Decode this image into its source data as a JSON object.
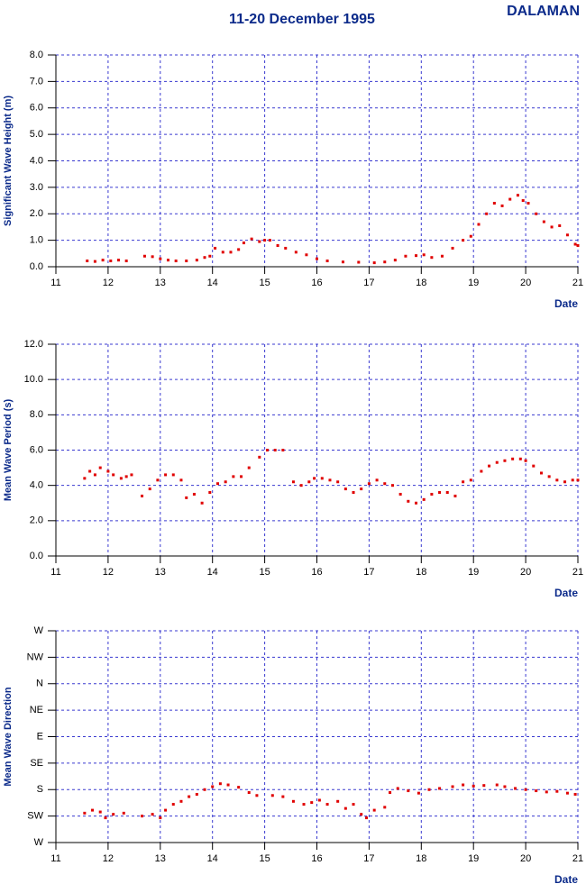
{
  "title": "11-20 December 1995",
  "station": "DALAMAN",
  "chart_data": [
    {
      "type": "scatter",
      "y_label": "Significant Wave Height (m)",
      "x_label": "Date",
      "color": "#e00000",
      "grid": true,
      "xlim": [
        11,
        21
      ],
      "xticks": [
        11,
        12,
        13,
        14,
        15,
        16,
        17,
        18,
        19,
        20,
        21
      ],
      "ylim": [
        0,
        8
      ],
      "yticks": [
        {
          "value": 0,
          "label": "0.0"
        },
        {
          "value": 1,
          "label": "1.0"
        },
        {
          "value": 2,
          "label": "2.0"
        },
        {
          "value": 3,
          "label": "3.0"
        },
        {
          "value": 4,
          "label": "4.0"
        },
        {
          "value": 5,
          "label": "5.0"
        },
        {
          "value": 6,
          "label": "6.0"
        },
        {
          "value": 7,
          "label": "7.0"
        },
        {
          "value": 8,
          "label": "8.0"
        }
      ],
      "x": [
        11.6,
        11.75,
        11.9,
        12.05,
        12.2,
        12.35,
        12.7,
        12.85,
        13.0,
        13.15,
        13.3,
        13.5,
        13.7,
        13.85,
        13.95,
        14.05,
        14.2,
        14.35,
        14.5,
        14.6,
        14.75,
        14.9,
        15.0,
        15.1,
        15.25,
        15.4,
        15.6,
        15.8,
        16.0,
        16.2,
        16.5,
        16.8,
        17.1,
        17.3,
        17.5,
        17.7,
        17.9,
        18.05,
        18.2,
        18.4,
        18.6,
        18.8,
        18.95,
        19.1,
        19.25,
        19.4,
        19.55,
        19.7,
        19.85,
        19.95,
        20.05,
        20.2,
        20.35,
        20.5,
        20.65,
        20.8,
        20.95,
        21.0
      ],
      "y": [
        0.22,
        0.2,
        0.25,
        0.22,
        0.25,
        0.22,
        0.4,
        0.38,
        0.3,
        0.25,
        0.22,
        0.22,
        0.25,
        0.35,
        0.4,
        0.7,
        0.55,
        0.55,
        0.65,
        0.9,
        1.05,
        0.95,
        1.0,
        1.0,
        0.8,
        0.7,
        0.55,
        0.45,
        0.3,
        0.22,
        0.18,
        0.17,
        0.15,
        0.18,
        0.25,
        0.4,
        0.42,
        0.45,
        0.35,
        0.4,
        0.7,
        1.0,
        1.15,
        1.6,
        2.0,
        2.4,
        2.3,
        2.55,
        2.7,
        2.5,
        2.4,
        2.0,
        1.7,
        1.5,
        1.55,
        1.2,
        0.85,
        0.8
      ]
    },
    {
      "type": "scatter",
      "y_label": "Mean Wave Period (s)",
      "x_label": "Date",
      "color": "#e00000",
      "grid": true,
      "xlim": [
        11,
        21
      ],
      "xticks": [
        11,
        12,
        13,
        14,
        15,
        16,
        17,
        18,
        19,
        20,
        21
      ],
      "ylim": [
        0,
        12
      ],
      "yticks": [
        {
          "value": 0,
          "label": "0.0"
        },
        {
          "value": 2,
          "label": "2.0"
        },
        {
          "value": 4,
          "label": "4.0"
        },
        {
          "value": 6,
          "label": "6.0"
        },
        {
          "value": 8,
          "label": "8.0"
        },
        {
          "value": 10,
          "label": "10.0"
        },
        {
          "value": 12,
          "label": "12.0"
        }
      ],
      "x": [
        11.55,
        11.65,
        11.75,
        11.85,
        12.0,
        12.1,
        12.25,
        12.35,
        12.45,
        12.65,
        12.8,
        12.95,
        13.1,
        13.25,
        13.4,
        13.5,
        13.65,
        13.8,
        13.95,
        14.1,
        14.25,
        14.4,
        14.55,
        14.7,
        14.9,
        15.05,
        15.2,
        15.35,
        15.55,
        15.7,
        15.85,
        15.95,
        16.1,
        16.25,
        16.4,
        16.55,
        16.7,
        16.85,
        17.0,
        17.15,
        17.3,
        17.45,
        17.6,
        17.75,
        17.9,
        18.05,
        18.2,
        18.35,
        18.5,
        18.65,
        18.8,
        18.95,
        19.15,
        19.3,
        19.45,
        19.6,
        19.75,
        19.9,
        20.0,
        20.15,
        20.3,
        20.45,
        20.6,
        20.75,
        20.9,
        21.0
      ],
      "y": [
        4.4,
        4.8,
        4.6,
        5.0,
        4.8,
        4.6,
        4.4,
        4.5,
        4.6,
        3.4,
        3.8,
        4.3,
        4.6,
        4.6,
        4.3,
        3.3,
        3.5,
        3.0,
        3.6,
        4.1,
        4.2,
        4.5,
        4.5,
        5.0,
        5.6,
        6.0,
        6.0,
        6.0,
        4.2,
        4.0,
        4.2,
        4.4,
        4.4,
        4.3,
        4.2,
        3.8,
        3.6,
        3.8,
        4.1,
        4.3,
        4.1,
        4.0,
        3.5,
        3.1,
        3.0,
        3.2,
        3.5,
        3.6,
        3.6,
        3.4,
        4.2,
        4.3,
        4.8,
        5.1,
        5.3,
        5.4,
        5.5,
        5.5,
        5.4,
        5.1,
        4.7,
        4.5,
        4.3,
        4.2,
        4.3,
        4.3
      ]
    },
    {
      "type": "scatter",
      "y_label": "Mean Wave Direction",
      "x_label": "Date",
      "color": "#e00000",
      "grid": true,
      "xlim": [
        11,
        21
      ],
      "xticks": [
        11,
        12,
        13,
        14,
        15,
        16,
        17,
        18,
        19,
        20,
        21
      ],
      "ylim": [
        270,
        -90
      ],
      "yticks": [
        {
          "value": 270,
          "label": "W"
        },
        {
          "value": 225,
          "label": "SW"
        },
        {
          "value": 180,
          "label": "S"
        },
        {
          "value": 135,
          "label": "SE"
        },
        {
          "value": 90,
          "label": "E"
        },
        {
          "value": 45,
          "label": "NE"
        },
        {
          "value": 0,
          "label": "N"
        },
        {
          "value": -45,
          "label": "NW"
        },
        {
          "value": -90,
          "label": "W"
        }
      ],
      "x": [
        11.55,
        11.7,
        11.85,
        11.95,
        12.1,
        12.3,
        12.65,
        12.85,
        13.0,
        13.1,
        13.25,
        13.4,
        13.55,
        13.7,
        13.85,
        14.0,
        14.15,
        14.3,
        14.5,
        14.7,
        14.85,
        15.15,
        15.35,
        15.55,
        15.75,
        15.9,
        16.05,
        16.2,
        16.4,
        16.55,
        16.7,
        16.85,
        16.95,
        17.1,
        17.3,
        17.4,
        17.55,
        17.75,
        17.95,
        18.15,
        18.35,
        18.6,
        18.8,
        19.0,
        19.2,
        19.45,
        19.6,
        19.8,
        20.0,
        20.2,
        20.4,
        20.6,
        20.8,
        20.95
      ],
      "y": [
        220,
        215,
        218,
        228,
        222,
        220,
        225,
        222,
        228,
        215,
        205,
        200,
        192,
        188,
        180,
        175,
        170,
        172,
        176,
        185,
        190,
        190,
        192,
        200,
        205,
        202,
        198,
        205,
        200,
        212,
        205,
        222,
        228,
        215,
        210,
        185,
        178,
        182,
        186,
        180,
        178,
        175,
        172,
        174,
        173,
        172,
        175,
        178,
        180,
        182,
        184,
        183,
        186,
        188
      ]
    }
  ]
}
